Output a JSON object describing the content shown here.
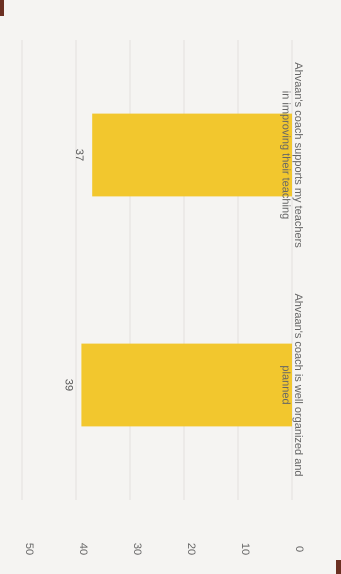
{
  "chart_data": {
    "type": "bar",
    "orientation": "vertical",
    "rotation": "90deg clockwise",
    "categories": [
      [
        "Ahvaan's coach is well organized and",
        "planned"
      ],
      [
        "Ahvaan's coach supports my teachers",
        "in improving their teaching"
      ]
    ],
    "values": [
      39,
      37
    ],
    "data_labels": [
      "39",
      "37"
    ],
    "ylim": [
      0,
      50
    ],
    "yticks": [
      "0",
      "10",
      "20",
      "30",
      "40",
      "50"
    ],
    "grid": true,
    "legend": "none",
    "title": "",
    "xlabel": "",
    "ylabel": ""
  },
  "colors": {
    "bar": "#f2c72e",
    "grid": "#e3e1de",
    "text": "#666666",
    "background": "#f5f4f2",
    "accent": "#6b3022"
  }
}
